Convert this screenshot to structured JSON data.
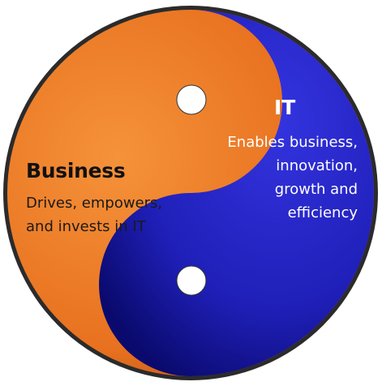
{
  "colors": {
    "business": "#e8711f",
    "business_dark": "#b5501a",
    "it": "#1f1fb8",
    "it_dark": "#0a0a6e",
    "rim": "#2b2b2b",
    "dot": "#ffffff"
  },
  "business": {
    "title": "Business",
    "description_lines": [
      "Drives, empowers,",
      "and invests in IT"
    ]
  },
  "it": {
    "title": "IT",
    "description_lines": [
      "Enables business,",
      "innovation,",
      "growth and",
      "efficiency"
    ]
  }
}
